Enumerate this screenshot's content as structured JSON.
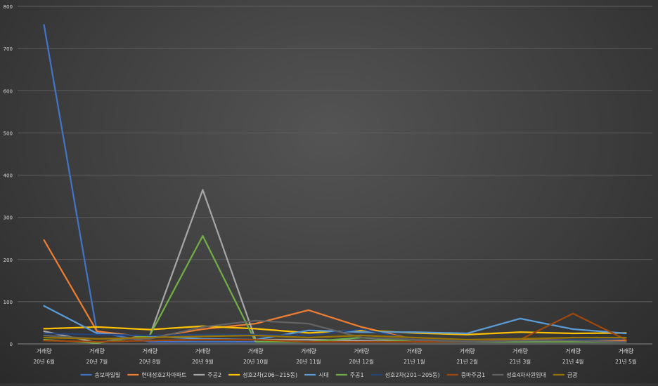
{
  "chart_data": {
    "type": "line",
    "title": "",
    "xlabel": "",
    "ylabel": "",
    "ylim": [
      0,
      800
    ],
    "yticks": [
      0,
      100,
      200,
      300,
      400,
      500,
      600,
      700,
      800
    ],
    "grid": true,
    "legend_position": "bottom",
    "categories": [
      {
        "top": "거래량",
        "bottom": "20년 6월"
      },
      {
        "top": "거래량",
        "bottom": "20년 7월"
      },
      {
        "top": "거래량",
        "bottom": "20년 8월"
      },
      {
        "top": "거래량",
        "bottom": "20년 9월"
      },
      {
        "top": "거래량",
        "bottom": "20년 10월"
      },
      {
        "top": "거래량",
        "bottom": "20년 11월"
      },
      {
        "top": "거래량",
        "bottom": "20년 12월"
      },
      {
        "top": "거래량",
        "bottom": "21년 1월"
      },
      {
        "top": "거래량",
        "bottom": "21년 2월"
      },
      {
        "top": "거래량",
        "bottom": "21년 3월"
      },
      {
        "top": "거래량",
        "bottom": "21년 4월"
      },
      {
        "top": "거래량",
        "bottom": "21년 5월"
      }
    ],
    "series": [
      {
        "name": "송보파일빌",
        "color": "#4472c4",
        "values": [
          756,
          28,
          5,
          5,
          5,
          5,
          5,
          5,
          5,
          5,
          5,
          5
        ]
      },
      {
        "name": "현대성호2차아파트",
        "color": "#ed7d31",
        "values": [
          246,
          30,
          15,
          35,
          48,
          80,
          40,
          10,
          8,
          10,
          10,
          8
        ]
      },
      {
        "name": "주공2",
        "color": "#a5a5a5",
        "values": [
          30,
          3,
          20,
          365,
          10,
          10,
          8,
          5,
          5,
          5,
          5,
          5
        ]
      },
      {
        "name": "성호2차(206~215동)",
        "color": "#ffc000",
        "values": [
          36,
          40,
          34,
          42,
          36,
          26,
          32,
          26,
          22,
          28,
          25,
          26
        ]
      },
      {
        "name": "시대",
        "color": "#5b9bd5",
        "values": [
          90,
          25,
          18,
          12,
          10,
          32,
          28,
          28,
          25,
          60,
          35,
          25
        ]
      },
      {
        "name": "주공1",
        "color": "#70ad47",
        "values": [
          10,
          2,
          20,
          256,
          5,
          5,
          15,
          5,
          5,
          5,
          5,
          5
        ]
      },
      {
        "name": "성호2차(201~205동)",
        "color": "#264478",
        "values": [
          25,
          22,
          20,
          22,
          22,
          20,
          35,
          10,
          8,
          8,
          10,
          12
        ]
      },
      {
        "name": "중마주공1",
        "color": "#9e480e",
        "values": [
          8,
          5,
          8,
          10,
          10,
          5,
          5,
          5,
          5,
          10,
          72,
          10
        ]
      },
      {
        "name": "성호4차사원임대",
        "color": "#636363",
        "values": [
          20,
          12,
          12,
          40,
          55,
          48,
          15,
          10,
          5,
          8,
          8,
          5
        ]
      },
      {
        "name": "금광",
        "color": "#997300",
        "values": [
          15,
          12,
          15,
          18,
          20,
          15,
          20,
          15,
          10,
          12,
          15,
          15
        ]
      }
    ]
  }
}
